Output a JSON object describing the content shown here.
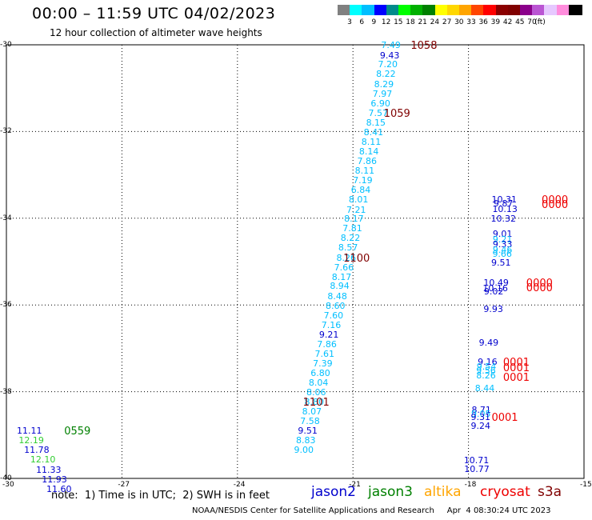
{
  "title": "00:00 – 11:59 UTC 04/02/2023",
  "subtitle": "12 hour collection of altimeter wave heights",
  "colorbar": {
    "colors": [
      "#808080",
      "#00ffff",
      "#00bfff",
      "#0000ff",
      "#008b8b",
      "#00ff00",
      "#00b000",
      "#008000",
      "#ffff00",
      "#ffd700",
      "#ffa500",
      "#ff4500",
      "#ff0000",
      "#8b0000",
      "#800000",
      "#8b008b",
      "#ba55d3",
      "#e6c8ff",
      "#ff8cdc",
      "#000000"
    ],
    "ticks": [
      "3",
      "6",
      "9",
      "12",
      "15",
      "18",
      "21",
      "24",
      "27",
      "30",
      "33",
      "36",
      "39",
      "42",
      "45",
      "70"
    ],
    "unit": "(ft)"
  },
  "axes": {
    "x_ticks": [
      "-30",
      "-27",
      "-24",
      "-21",
      "-18",
      "-15"
    ],
    "y_ticks": [
      "-30",
      "-32",
      "-34",
      "-36",
      "-38",
      "-40"
    ]
  },
  "swh_points": [
    {
      "text": "7.49",
      "lon": -20.27,
      "lat": -30.02,
      "color": "#00bfff"
    },
    {
      "text": "9.43",
      "lon": -20.3,
      "lat": -30.25,
      "color": "#0000cd"
    },
    {
      "text": "7.20",
      "lon": -20.35,
      "lat": -30.47,
      "color": "#00bfff"
    },
    {
      "text": "8.22",
      "lon": -20.4,
      "lat": -30.69,
      "color": "#00bfff"
    },
    {
      "text": "8.29",
      "lon": -20.45,
      "lat": -30.92,
      "color": "#00bfff"
    },
    {
      "text": "7.97",
      "lon": -20.49,
      "lat": -31.14,
      "color": "#00bfff"
    },
    {
      "text": "6.90",
      "lon": -20.54,
      "lat": -31.36,
      "color": "#00bfff"
    },
    {
      "text": "7.57",
      "lon": -20.6,
      "lat": -31.58,
      "color": "#00bfff"
    },
    {
      "text": "8.15",
      "lon": -20.66,
      "lat": -31.81,
      "color": "#00bfff"
    },
    {
      "text": "8.41",
      "lon": -20.72,
      "lat": -32.03,
      "color": "#00bfff"
    },
    {
      "text": "8.11",
      "lon": -20.78,
      "lat": -32.25,
      "color": "#00bfff"
    },
    {
      "text": "8.14",
      "lon": -20.84,
      "lat": -32.47,
      "color": "#00bfff"
    },
    {
      "text": "7.86",
      "lon": -20.89,
      "lat": -32.69,
      "color": "#00bfff"
    },
    {
      "text": "8.11",
      "lon": -20.95,
      "lat": -32.92,
      "color": "#00bfff"
    },
    {
      "text": "7.19",
      "lon": -21.0,
      "lat": -33.14,
      "color": "#00bfff"
    },
    {
      "text": "6.84",
      "lon": -21.05,
      "lat": -33.36,
      "color": "#00bfff"
    },
    {
      "text": "8.01",
      "lon": -21.11,
      "lat": -33.58,
      "color": "#00bfff"
    },
    {
      "text": "7.21",
      "lon": -21.17,
      "lat": -33.81,
      "color": "#00bfff"
    },
    {
      "text": "8.17",
      "lon": -21.23,
      "lat": -34.03,
      "color": "#00bfff"
    },
    {
      "text": "7.81",
      "lon": -21.27,
      "lat": -34.25,
      "color": "#00bfff"
    },
    {
      "text": "8.22",
      "lon": -21.32,
      "lat": -34.47,
      "color": "#00bfff"
    },
    {
      "text": "8.57",
      "lon": -21.38,
      "lat": -34.69,
      "color": "#00bfff"
    },
    {
      "text": "8.26",
      "lon": -21.43,
      "lat": -34.92,
      "color": "#00bfff"
    },
    {
      "text": "7.66",
      "lon": -21.49,
      "lat": -35.14,
      "color": "#00bfff"
    },
    {
      "text": "8.17",
      "lon": -21.55,
      "lat": -35.36,
      "color": "#00bfff"
    },
    {
      "text": "8.94",
      "lon": -21.6,
      "lat": -35.58,
      "color": "#00bfff"
    },
    {
      "text": "8.48",
      "lon": -21.66,
      "lat": -35.81,
      "color": "#00bfff"
    },
    {
      "text": "8.60",
      "lon": -21.71,
      "lat": -36.03,
      "color": "#00bfff"
    },
    {
      "text": "7.60",
      "lon": -21.76,
      "lat": -36.25,
      "color": "#00bfff"
    },
    {
      "text": "7.16",
      "lon": -21.82,
      "lat": -36.47,
      "color": "#00bfff"
    },
    {
      "text": "9.21",
      "lon": -21.88,
      "lat": -36.69,
      "color": "#0000cd"
    },
    {
      "text": "7.86",
      "lon": -21.93,
      "lat": -36.92,
      "color": "#00bfff"
    },
    {
      "text": "7.61",
      "lon": -21.99,
      "lat": -37.14,
      "color": "#00bfff"
    },
    {
      "text": "7.39",
      "lon": -22.04,
      "lat": -37.36,
      "color": "#00bfff"
    },
    {
      "text": "6.80",
      "lon": -22.1,
      "lat": -37.58,
      "color": "#00bfff"
    },
    {
      "text": "8.04",
      "lon": -22.15,
      "lat": -37.81,
      "color": "#00bfff"
    },
    {
      "text": "8.06",
      "lon": -22.21,
      "lat": -38.03,
      "color": "#00bfff"
    },
    {
      "text": "8.80",
      "lon": -22.26,
      "lat": -38.25,
      "color": "#00bfff"
    },
    {
      "text": "8.07",
      "lon": -22.32,
      "lat": -38.47,
      "color": "#00bfff"
    },
    {
      "text": "7.58",
      "lon": -22.37,
      "lat": -38.69,
      "color": "#00bfff"
    },
    {
      "text": "9.51",
      "lon": -22.43,
      "lat": -38.92,
      "color": "#0000cd"
    },
    {
      "text": "8.83",
      "lon": -22.48,
      "lat": -39.14,
      "color": "#00bfff"
    },
    {
      "text": "9.00",
      "lon": -22.53,
      "lat": -39.36,
      "color": "#00bfff"
    },
    {
      "text": "10.31",
      "lon": -17.4,
      "lat": -33.58,
      "color": "#0000cd"
    },
    {
      "text": "9.87",
      "lon": -17.35,
      "lat": -33.67,
      "color": "#0000cd"
    },
    {
      "text": "10.13",
      "lon": -17.38,
      "lat": -33.8,
      "color": "#0000cd"
    },
    {
      "text": "10.32",
      "lon": -17.42,
      "lat": -34.03,
      "color": "#0000cd"
    },
    {
      "text": "9.01",
      "lon": -17.37,
      "lat": -34.37,
      "color": "#0000cd"
    },
    {
      "text": "9.21",
      "lon": -17.37,
      "lat": -34.5,
      "color": "#00bfff"
    },
    {
      "text": "9.33",
      "lon": -17.37,
      "lat": -34.62,
      "color": "#0000cd"
    },
    {
      "text": "9.46",
      "lon": -17.37,
      "lat": -34.74,
      "color": "#00bfff"
    },
    {
      "text": "9.66",
      "lon": -17.38,
      "lat": -34.84,
      "color": "#00bfff"
    },
    {
      "text": "9.51",
      "lon": -17.41,
      "lat": -35.03,
      "color": "#0000cd"
    },
    {
      "text": "10.49",
      "lon": -17.61,
      "lat": -35.49,
      "color": "#0000cd"
    },
    {
      "text": "10.16",
      "lon": -17.63,
      "lat": -35.62,
      "color": "#0000cd"
    },
    {
      "text": "9.02",
      "lon": -17.6,
      "lat": -35.71,
      "color": "#0000cd"
    },
    {
      "text": "9.93",
      "lon": -17.61,
      "lat": -36.1,
      "color": "#0000cd"
    },
    {
      "text": "9.49",
      "lon": -17.73,
      "lat": -36.88,
      "color": "#0000cd"
    },
    {
      "text": "9.16",
      "lon": -17.76,
      "lat": -37.32,
      "color": "#0000cd"
    },
    {
      "text": "9.54",
      "lon": -17.79,
      "lat": -37.44,
      "color": "#00bfff"
    },
    {
      "text": "9.56",
      "lon": -17.8,
      "lat": -37.52,
      "color": "#00bfff"
    },
    {
      "text": "8.26",
      "lon": -17.8,
      "lat": -37.63,
      "color": "#00bfff"
    },
    {
      "text": "8.44",
      "lon": -17.83,
      "lat": -37.93,
      "color": "#00bfff"
    },
    {
      "text": "8.71",
      "lon": -17.92,
      "lat": -38.44,
      "color": "#0000cd"
    },
    {
      "text": "9.05",
      "lon": -17.93,
      "lat": -38.53,
      "color": "#00bfff"
    },
    {
      "text": "9.31",
      "lon": -17.94,
      "lat": -38.6,
      "color": "#0000cd"
    },
    {
      "text": "9.24",
      "lon": -17.94,
      "lat": -38.8,
      "color": "#0000cd"
    },
    {
      "text": "10.71",
      "lon": -18.12,
      "lat": -39.6,
      "color": "#0000cd"
    },
    {
      "text": "10.77",
      "lon": -18.11,
      "lat": -39.8,
      "color": "#0000cd"
    },
    {
      "text": "11.11",
      "lon": -29.73,
      "lat": -38.92,
      "color": "#0000cd"
    },
    {
      "text": "12.19",
      "lon": -29.68,
      "lat": -39.14,
      "color": "#32cd32"
    },
    {
      "text": "11.78",
      "lon": -29.54,
      "lat": -39.36,
      "color": "#0000cd"
    },
    {
      "text": "12.10",
      "lon": -29.38,
      "lat": -39.58,
      "color": "#32cd32"
    },
    {
      "text": "11.33",
      "lon": -29.23,
      "lat": -39.81,
      "color": "#0000cd"
    },
    {
      "text": "11.93",
      "lon": -29.08,
      "lat": -40.03,
      "color": "#0000cd"
    },
    {
      "text": "11.60",
      "lon": -28.96,
      "lat": -40.25,
      "color": "#0000cd"
    }
  ],
  "time_labels": [
    {
      "text": "1058",
      "lon": -19.5,
      "lat": -30.02,
      "color": "#800000"
    },
    {
      "text": "1059",
      "lon": -20.2,
      "lat": -31.58,
      "color": "#800000"
    },
    {
      "text": "1100",
      "lon": -21.25,
      "lat": -34.92,
      "color": "#800000"
    },
    {
      "text": "1101",
      "lon": -22.3,
      "lat": -38.25,
      "color": "#800000"
    },
    {
      "text": "0000",
      "lon": -16.1,
      "lat": -33.58,
      "color": "#ee0000"
    },
    {
      "text": "0000",
      "lon": -16.1,
      "lat": -33.69,
      "color": "#ee0000"
    },
    {
      "text": "0000",
      "lon": -16.5,
      "lat": -35.49,
      "color": "#ee0000"
    },
    {
      "text": "0000",
      "lon": -16.5,
      "lat": -35.6,
      "color": "#ee0000"
    },
    {
      "text": "0001",
      "lon": -17.1,
      "lat": -37.32,
      "color": "#ee0000"
    },
    {
      "text": "0001",
      "lon": -17.1,
      "lat": -37.45,
      "color": "#ee0000"
    },
    {
      "text": "0001",
      "lon": -17.1,
      "lat": -37.68,
      "color": "#ee0000"
    },
    {
      "text": "0001",
      "lon": -17.4,
      "lat": -38.6,
      "color": "#ee0000"
    },
    {
      "text": "0559",
      "lon": -28.5,
      "lat": -38.92,
      "color": "#008000"
    }
  ],
  "note": "note:  1) Time is in UTC;  2) SWH is in feet",
  "satellites": [
    {
      "name": "jason2",
      "color": "#0000cd"
    },
    {
      "name": "jason3",
      "color": "#008000"
    },
    {
      "name": "altika",
      "color": "#ffa500"
    },
    {
      "name": "cryosat",
      "color": "#ee0000"
    },
    {
      "name": "s3a",
      "color": "#800000"
    }
  ],
  "footer": "NOAA/NESDIS Center for Satellite Applications and Research     Apr  4 08:30:24 UTC 2023"
}
